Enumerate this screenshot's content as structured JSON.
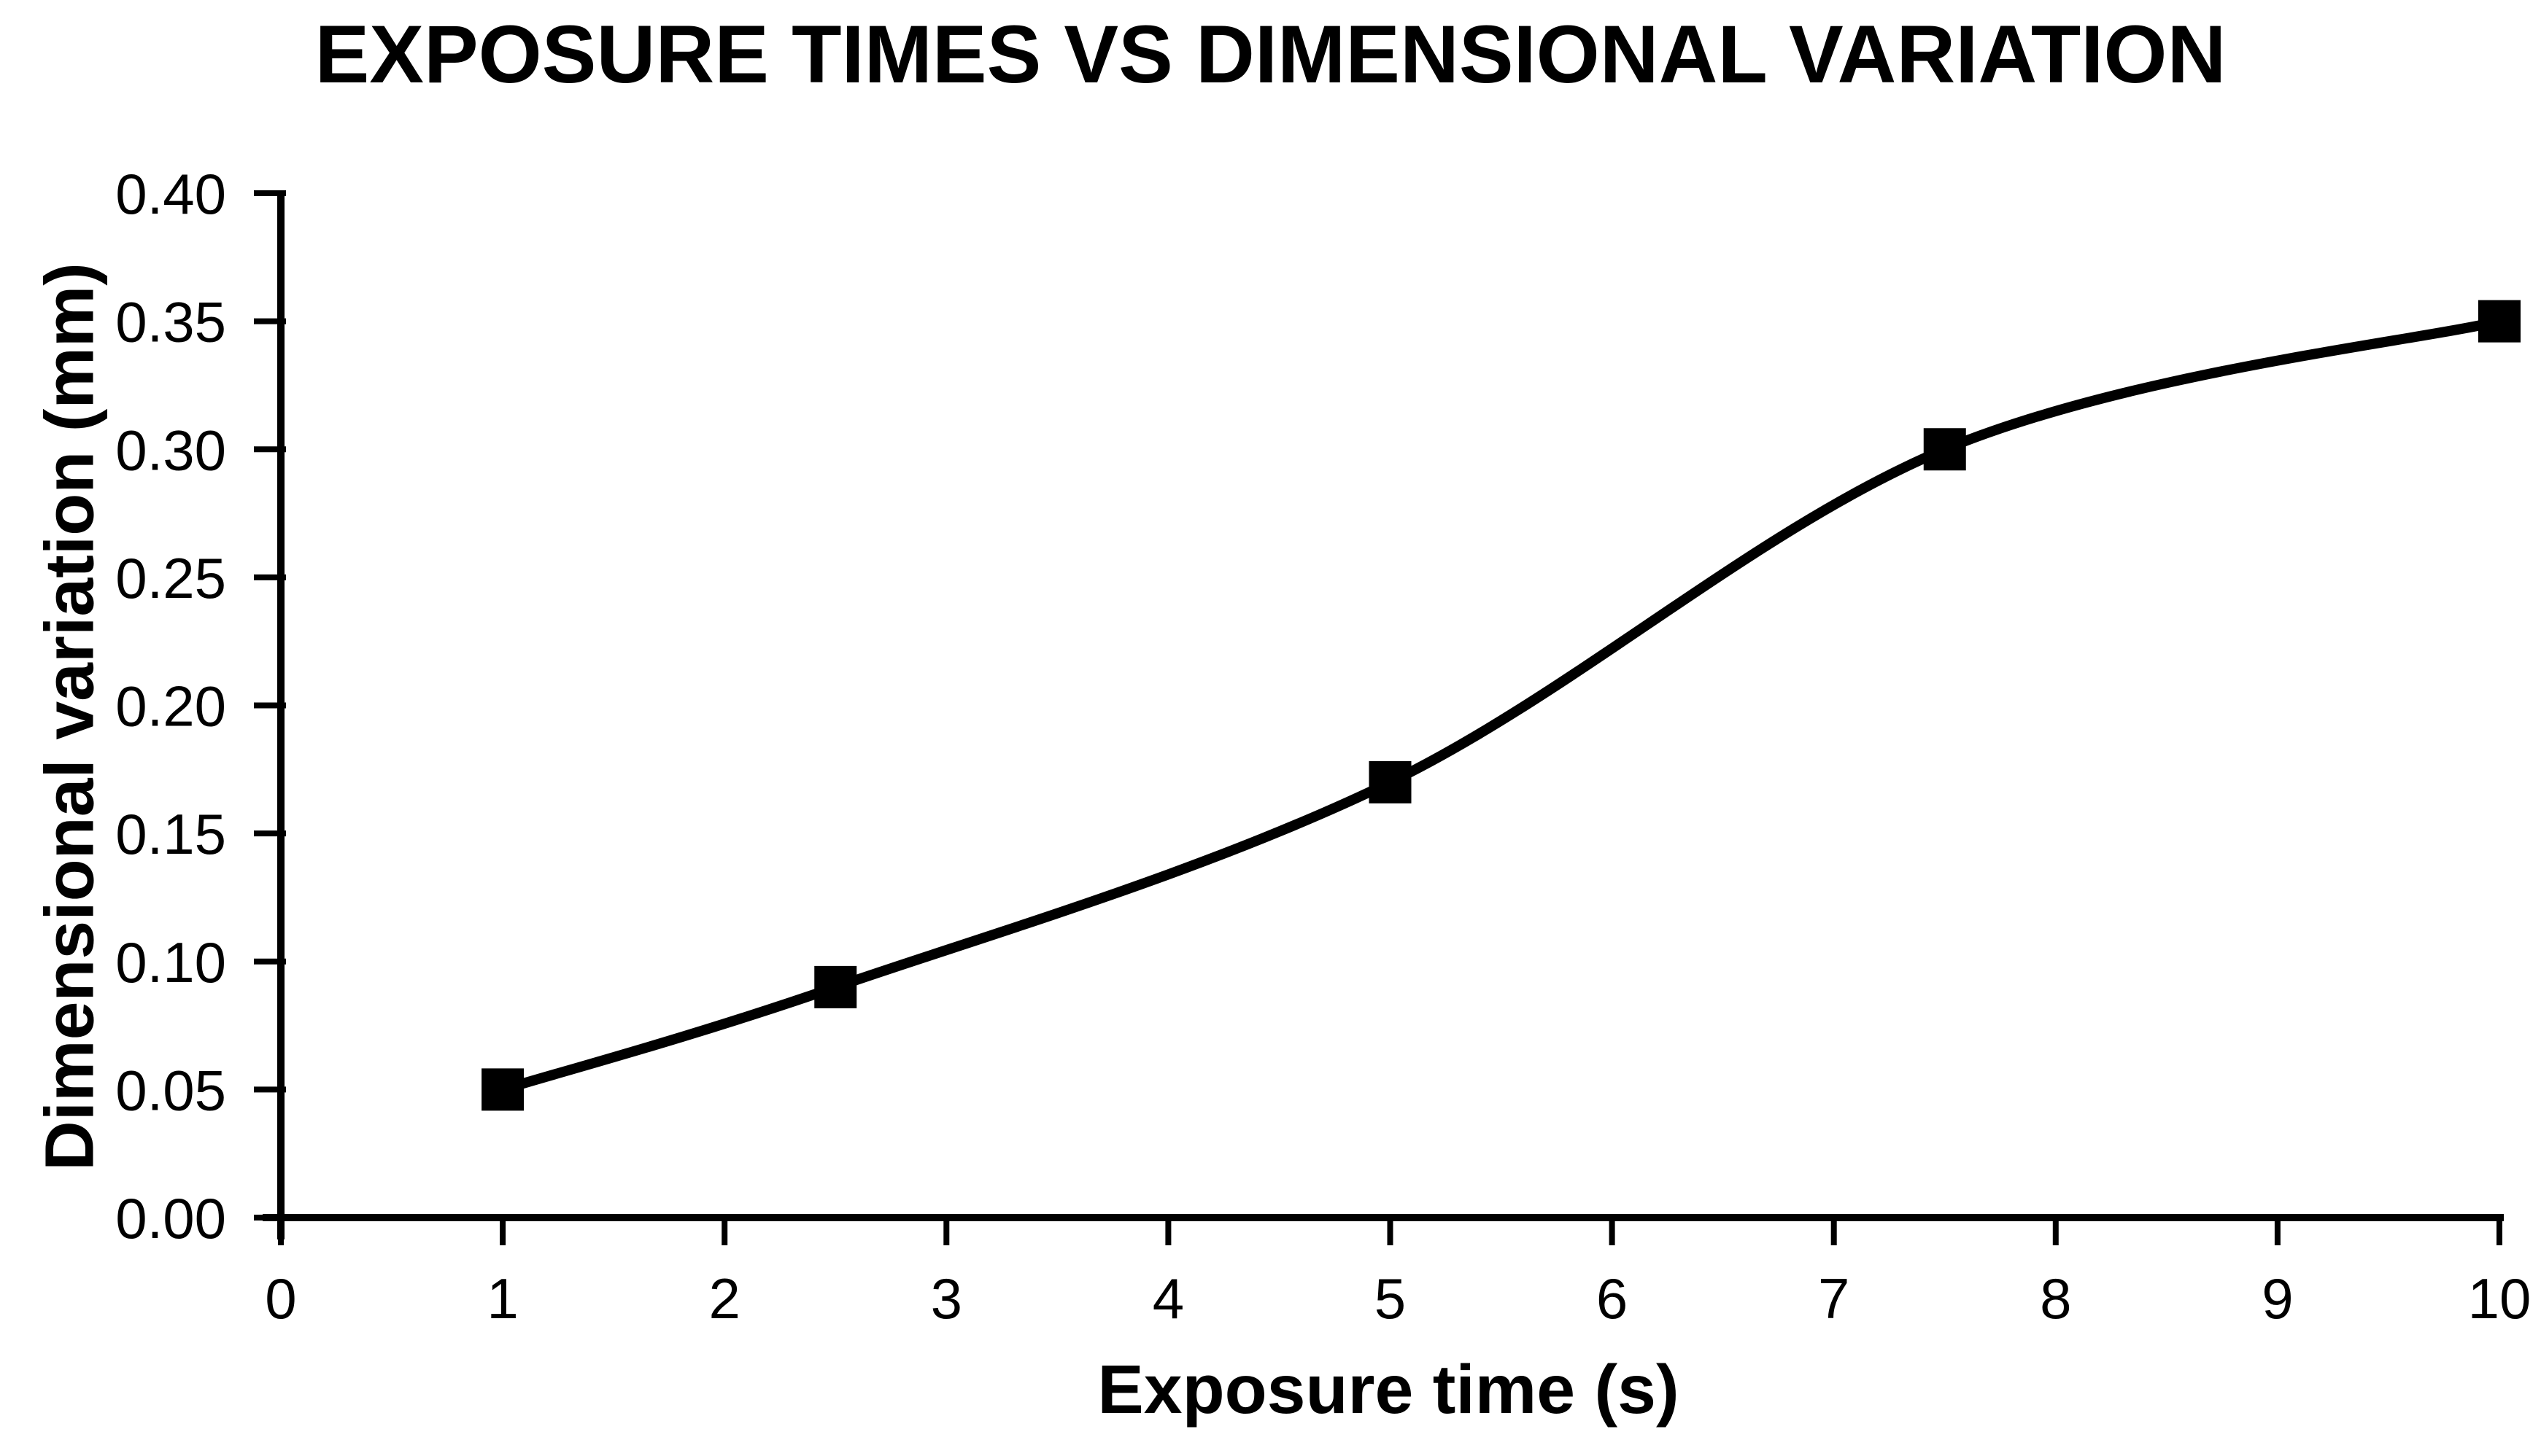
{
  "chart_data": {
    "type": "line",
    "title": "EXPOSURE TIMES VS DIMENSIONAL VARIATION",
    "xlabel": "Exposure time (s)",
    "ylabel": "Dimensional variation (mm)",
    "x": [
      1,
      2.5,
      5,
      7.5,
      10
    ],
    "y": [
      0.05,
      0.09,
      0.17,
      0.3,
      0.35
    ],
    "xlim": [
      0,
      10
    ],
    "ylim": [
      0,
      0.4
    ],
    "x_ticks": {
      "values": [
        0,
        1,
        2,
        3,
        4,
        5,
        6,
        7,
        8,
        9,
        10
      ],
      "labels": [
        "0",
        "1",
        "2",
        "3",
        "4",
        "5",
        "6",
        "7",
        "8",
        "9",
        "10"
      ]
    },
    "y_ticks": {
      "values": [
        0.0,
        0.05,
        0.1,
        0.15,
        0.2,
        0.25,
        0.3,
        0.35,
        0.4
      ],
      "labels": [
        "0.00",
        "0.05",
        "0.10",
        "0.15",
        "0.20",
        "0.25",
        "0.30",
        "0.35",
        "0.40"
      ]
    },
    "grid": false,
    "legend": "none",
    "smooth_line": true,
    "marker_shape": "square",
    "line_color": "#000000",
    "marker_color": "#000000",
    "text_color": "#000000",
    "background_color": "#ffffff"
  }
}
